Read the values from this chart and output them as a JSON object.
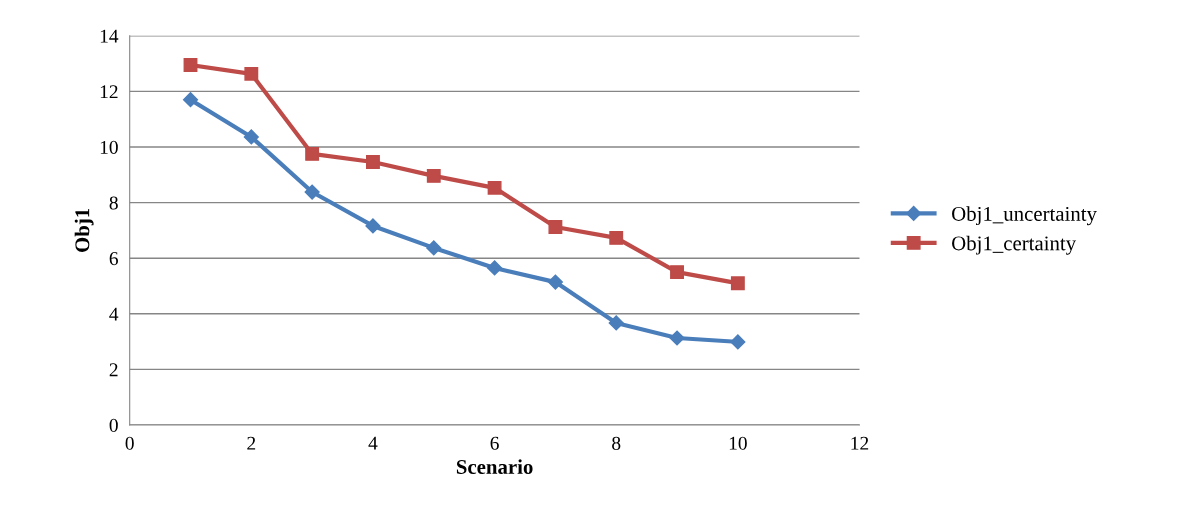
{
  "chart_data": {
    "type": "line",
    "xlabel": "Scenario",
    "ylabel": "Obj1",
    "x": [
      1,
      2,
      3,
      4,
      5,
      6,
      7,
      8,
      9,
      10
    ],
    "series": [
      {
        "name": "Obj1_uncertainty",
        "color": "#4a7ebb",
        "marker": "diamond",
        "values": [
          11.7,
          10.36,
          8.38,
          7.16,
          6.37,
          5.65,
          5.14,
          3.67,
          3.13,
          2.99
        ]
      },
      {
        "name": "Obj1_certainty",
        "color": "#be4b48",
        "marker": "square",
        "values": [
          12.95,
          12.63,
          9.75,
          9.46,
          8.96,
          8.53,
          7.12,
          6.73,
          5.5,
          5.1
        ]
      }
    ],
    "xlim": [
      0,
      12
    ],
    "xticks": [
      0,
      2,
      4,
      6,
      8,
      10,
      12
    ],
    "ylim": [
      0,
      14
    ],
    "yticks": [
      0,
      2,
      4,
      6,
      8,
      10,
      12,
      14
    ],
    "grid": "y",
    "legend": "right",
    "line_style": "solid"
  }
}
